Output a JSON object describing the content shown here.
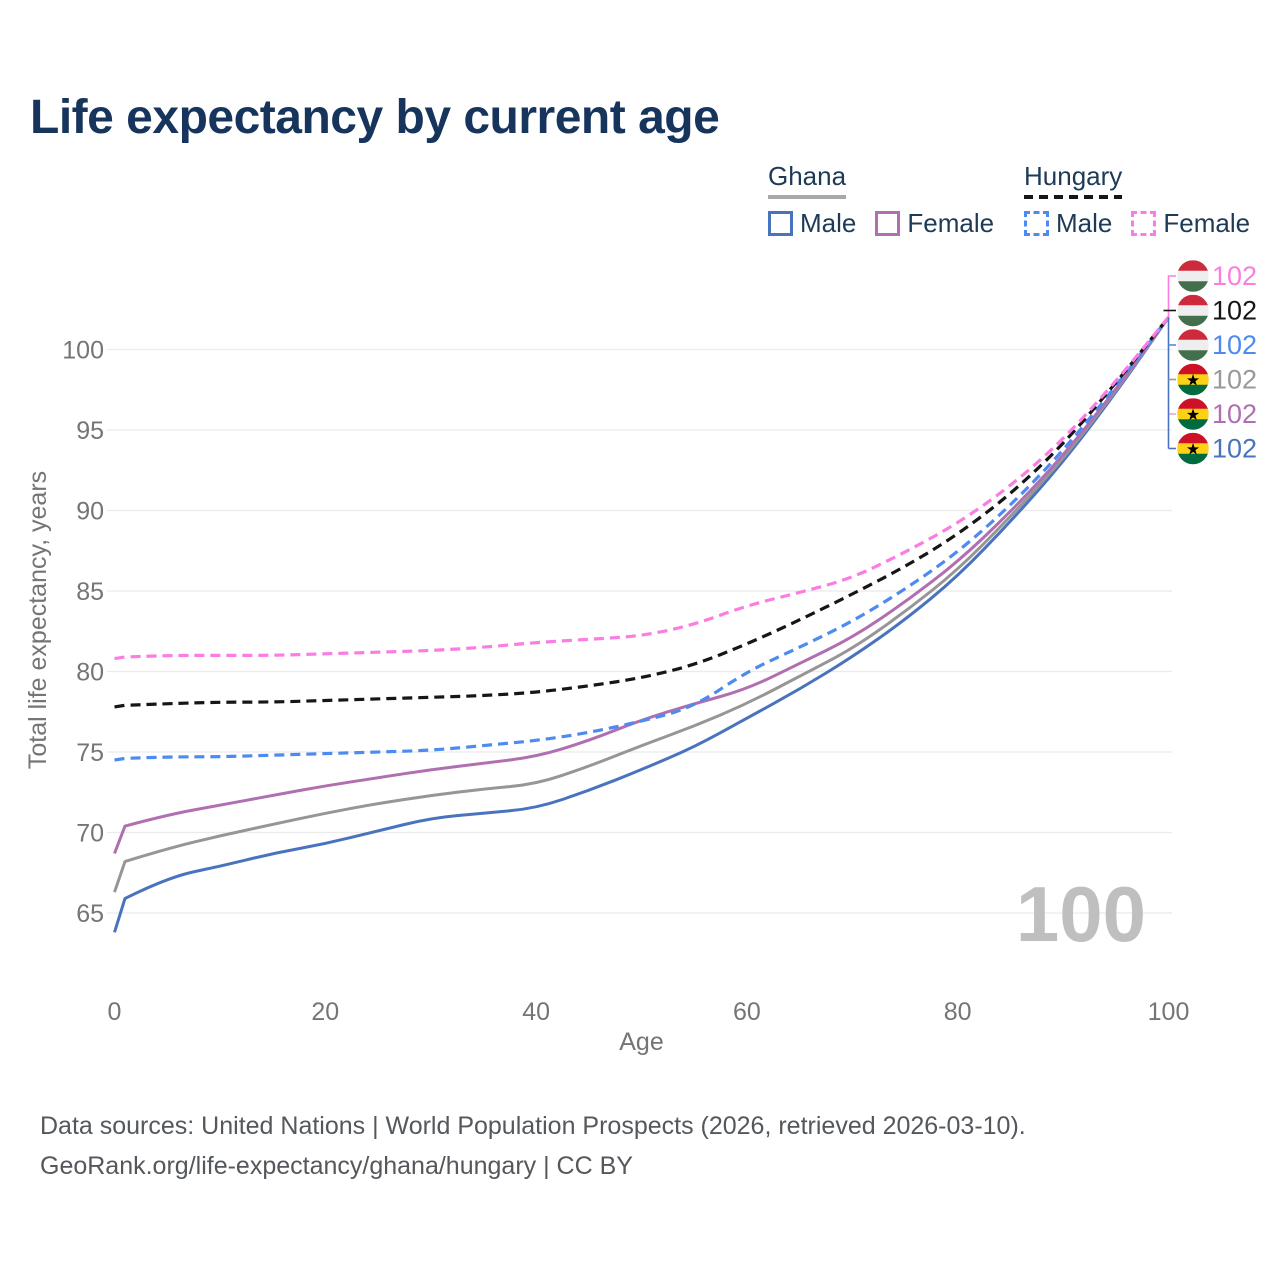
{
  "title": "Life expectancy by current age",
  "legend": {
    "groups": [
      {
        "name": "Ghana",
        "rule_style": "solid",
        "rule_color": "#a8a8a8",
        "items": [
          {
            "label": "Male",
            "color": "#4a73bd",
            "dash": "solid"
          },
          {
            "label": "Female",
            "color": "#b06fb0",
            "dash": "solid"
          }
        ]
      },
      {
        "name": "Hungary",
        "rule_style": "dashed",
        "rule_color": "#161616",
        "items": [
          {
            "label": "Male",
            "color": "#4e8bf0",
            "dash": "dashed"
          },
          {
            "label": "Female",
            "color": "#fb7de2",
            "dash": "dashed"
          }
        ]
      }
    ]
  },
  "chart_data": {
    "type": "line",
    "title": "Life expectancy by current age",
    "xlabel": "Age",
    "ylabel": "Total life expectancy, years",
    "xlim": [
      0,
      100
    ],
    "ylim": [
      63,
      103
    ],
    "x_ticks": [
      0,
      20,
      40,
      60,
      80,
      100
    ],
    "y_ticks": [
      65,
      70,
      75,
      80,
      85,
      90,
      95,
      100
    ],
    "grid": "horizontal",
    "watermark": "100",
    "x": [
      0,
      1,
      5,
      10,
      15,
      20,
      25,
      30,
      35,
      40,
      45,
      50,
      55,
      60,
      65,
      70,
      75,
      80,
      85,
      90,
      95,
      100
    ],
    "series": [
      {
        "name": "Ghana Male",
        "color": "#4a73bd",
        "dash": "solid",
        "values": [
          63.8,
          65.9,
          67.2,
          67.9,
          68.7,
          69.3,
          70.1,
          70.9,
          71.2,
          71.5,
          72.6,
          73.9,
          75.3,
          77.1,
          78.9,
          80.9,
          83.2,
          85.9,
          89.3,
          93.0,
          97.3,
          102
        ]
      },
      {
        "name": "Ghana Both sexes",
        "color": "#969696",
        "dash": "solid",
        "values": [
          66.3,
          68.2,
          69.0,
          69.8,
          70.5,
          71.2,
          71.8,
          72.3,
          72.7,
          73.0,
          74.1,
          75.4,
          76.6,
          78.0,
          79.7,
          81.4,
          83.7,
          86.3,
          89.6,
          93.2,
          97.4,
          102
        ]
      },
      {
        "name": "Ghana Female",
        "color": "#b06fb0",
        "dash": "solid",
        "values": [
          68.7,
          70.4,
          71.1,
          71.7,
          72.3,
          72.9,
          73.4,
          73.9,
          74.3,
          74.7,
          75.7,
          77.0,
          78.0,
          78.9,
          80.5,
          82.1,
          84.3,
          86.8,
          89.9,
          93.4,
          97.5,
          102
        ]
      },
      {
        "name": "Hungary Male",
        "color": "#4e8bf0",
        "dash": "dashed",
        "values": [
          74.5,
          74.6,
          74.7,
          74.7,
          74.8,
          74.9,
          75.0,
          75.1,
          75.4,
          75.7,
          76.2,
          76.9,
          77.8,
          80.0,
          81.5,
          83.1,
          85.1,
          87.4,
          90.3,
          93.7,
          97.7,
          102
        ]
      },
      {
        "name": "Hungary Both sexes",
        "color": "#161616",
        "dash": "dashed",
        "values": [
          77.8,
          77.9,
          78.0,
          78.1,
          78.1,
          78.2,
          78.3,
          78.4,
          78.5,
          78.7,
          79.1,
          79.6,
          80.4,
          81.7,
          83.2,
          84.8,
          86.5,
          88.5,
          91.0,
          94.1,
          97.9,
          102
        ]
      },
      {
        "name": "Hungary Female",
        "color": "#fb7de2",
        "dash": "dashed",
        "values": [
          80.8,
          80.9,
          81.0,
          81.0,
          81.0,
          81.1,
          81.2,
          81.3,
          81.5,
          81.8,
          82.0,
          82.2,
          82.9,
          84.1,
          84.9,
          85.8,
          87.4,
          89.2,
          91.5,
          94.4,
          98.0,
          102
        ]
      }
    ],
    "end_labels": [
      {
        "flag": "hungary",
        "series": "Hungary Female",
        "value": "102",
        "color": "#fb7de2"
      },
      {
        "flag": "hungary",
        "series": "Hungary Both sexes",
        "value": "102",
        "color": "#161616"
      },
      {
        "flag": "hungary",
        "series": "Hungary Male",
        "value": "102",
        "color": "#4e8bf0"
      },
      {
        "flag": "ghana",
        "series": "Ghana Both sexes",
        "value": "102",
        "color": "#999999"
      },
      {
        "flag": "ghana",
        "series": "Ghana Female",
        "value": "102",
        "color": "#b06fb0"
      },
      {
        "flag": "ghana",
        "series": "Ghana Male",
        "value": "102",
        "color": "#4a73bd"
      }
    ],
    "flag_colors": {
      "hungary": [
        "#cd2a3e",
        "#eeeeee",
        "#436f4d"
      ],
      "ghana": [
        "#ce1126",
        "#fcd116",
        "#006b3f"
      ],
      "ghana_star": "#000000"
    }
  },
  "footer": {
    "line1": "Data sources: United Nations | World Population Prospects (2026, retrieved 2026-03-10).",
    "line2": "GeoRank.org/life-expectancy/ghana/hungary | CC BY"
  }
}
